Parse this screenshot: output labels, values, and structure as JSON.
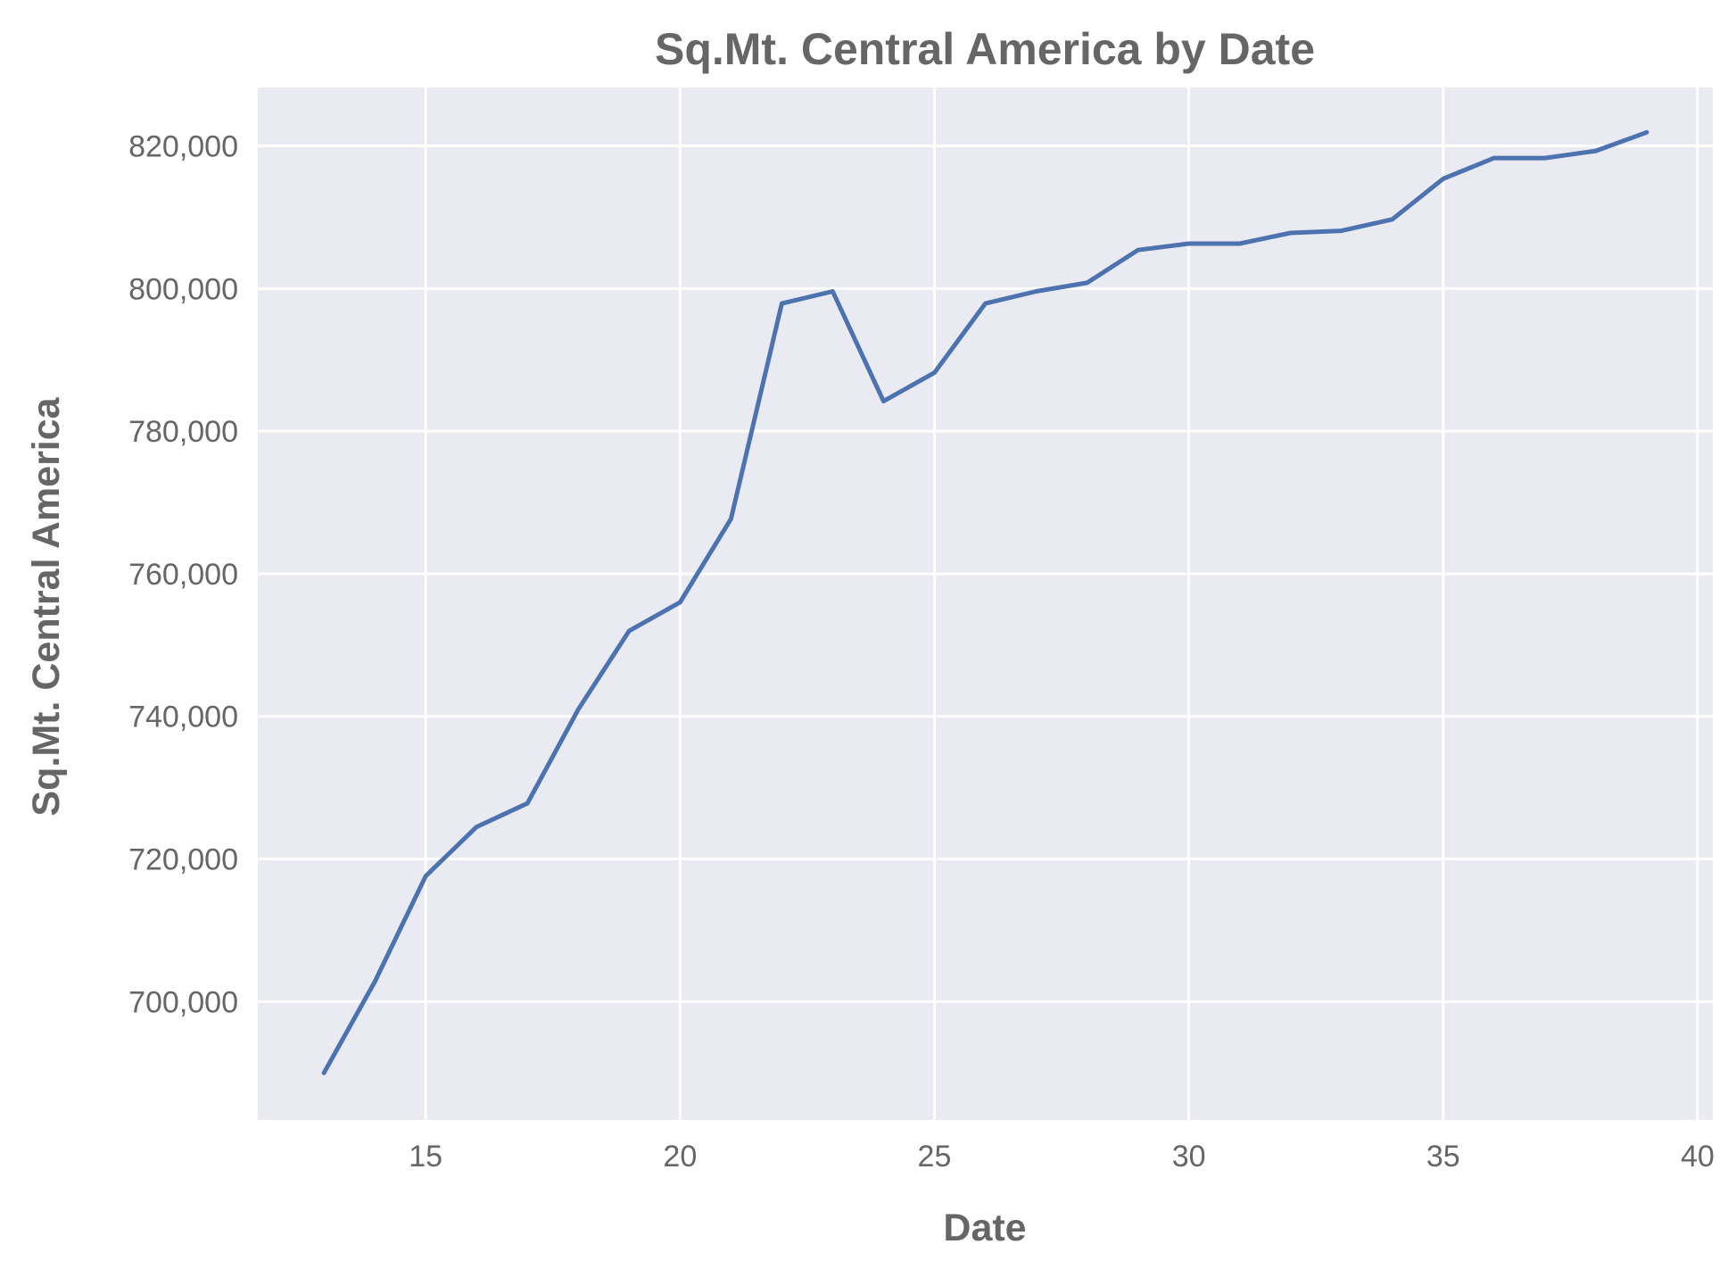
{
  "chart_data": {
    "type": "line",
    "title": "Sq.Mt. Central America by Date",
    "xlabel": "Date",
    "ylabel": "Sq.Mt. Central America",
    "x": [
      13,
      14,
      15,
      16,
      17,
      18,
      19,
      20,
      21,
      22,
      23,
      24,
      25,
      26,
      27,
      28,
      29,
      30,
      31,
      32,
      33,
      34,
      35,
      36,
      37,
      38,
      39
    ],
    "series": [
      {
        "values": [
          690000,
          702800,
          717600,
          724500,
          727800,
          741000,
          752000,
          756000,
          767700,
          797900,
          799600,
          784200,
          788200,
          797900,
          799600,
          800800,
          805400,
          806300,
          806300,
          807800,
          808100,
          809700,
          815400,
          818300,
          818300,
          819300,
          821900
        ],
        "color": "#4c72b0"
      }
    ],
    "xlim": [
      11.7,
      40.3
    ],
    "ylim": [
      683400,
      828200
    ],
    "xticks": [
      15,
      20,
      25,
      30,
      35,
      40
    ],
    "xtick_labels": [
      "15",
      "20",
      "25",
      "30",
      "35",
      "40"
    ],
    "yticks": [
      700000,
      720000,
      740000,
      760000,
      780000,
      800000,
      820000
    ],
    "ytick_labels": [
      "700,000",
      "720,000",
      "740,000",
      "760,000",
      "780,000",
      "800,000",
      "820,000"
    ],
    "grid": true,
    "background": "#eaeaf2",
    "grid_color": "#ffffff",
    "text_color": "#666666"
  }
}
